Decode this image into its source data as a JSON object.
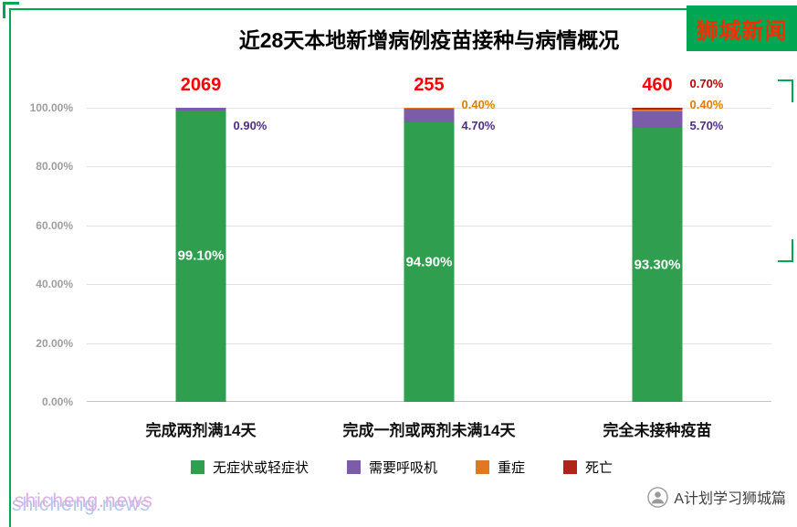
{
  "badge": {
    "label": "狮城新闻",
    "bg_color": "#00A651",
    "text_color": "#FF2B00"
  },
  "watermark": "shicheng.news",
  "footer": {
    "account_name": "A计划学习狮城篇"
  },
  "frame_color": "#00A651",
  "chart_data": {
    "type": "bar",
    "stacked": true,
    "title": "近28天本地新增病例疫苗接种与病情概况",
    "categories": [
      "完成两剂满14天",
      "完成一剂或两剂未满14天",
      "完全未接种疫苗"
    ],
    "totals": [
      "2069",
      "255",
      "460"
    ],
    "totals_color": "#FF0000",
    "series": [
      {
        "id": "asymptomatic-or-mild",
        "name": "无症状或轻症状",
        "color": "#2F9E4F",
        "label_color": "#FFFFFF",
        "values": [
          99.1,
          94.9,
          93.3
        ]
      },
      {
        "id": "needs-ventilator",
        "name": "需要呼吸机",
        "color": "#7A5CA8",
        "label_color": "#4B2E83",
        "values": [
          0.9,
          4.7,
          5.7
        ]
      },
      {
        "id": "severe",
        "name": "重症",
        "color": "#DE7921",
        "label_color": "#E07C00",
        "values": [
          0,
          0.4,
          0.4
        ]
      },
      {
        "id": "death",
        "name": "死亡",
        "color": "#AF2318",
        "label_color": "#C00000",
        "values": [
          0,
          0,
          0.7
        ]
      }
    ],
    "y_ticks": [
      "100.00%",
      "80.00%",
      "60.00%",
      "40.00%",
      "20.00%",
      "0.00%"
    ],
    "ylim": [
      0,
      100
    ],
    "grid": true,
    "legend_position": "bottom"
  }
}
